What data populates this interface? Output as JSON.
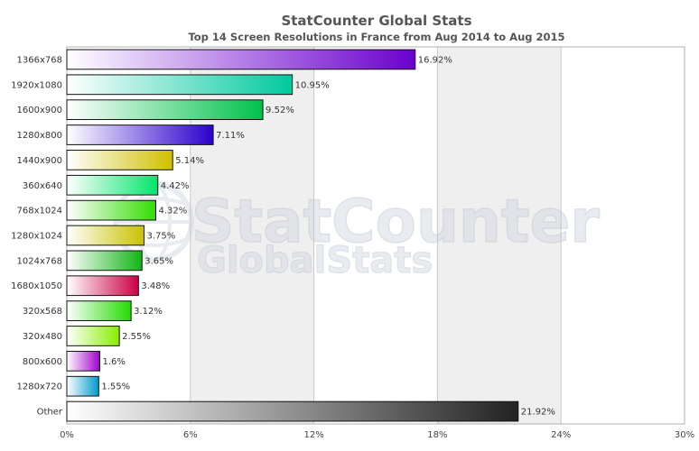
{
  "chart_data": {
    "type": "bar",
    "orientation": "horizontal",
    "title": "StatCounter Global Stats",
    "subtitle": "Top 14 Screen Resolutions in France from Aug 2014 to Aug 2015",
    "categories": [
      "1366x768",
      "1920x1080",
      "1600x900",
      "1280x800",
      "1440x900",
      "360x640",
      "768x1024",
      "1280x1024",
      "1024x768",
      "1680x1050",
      "320x568",
      "320x480",
      "800x600",
      "1280x720",
      "Other"
    ],
    "values": [
      16.92,
      10.95,
      9.52,
      7.11,
      5.14,
      4.42,
      4.32,
      3.75,
      3.65,
      3.48,
      3.12,
      2.55,
      1.6,
      1.55,
      21.92
    ],
    "value_labels": [
      "16.92%",
      "10.95%",
      "9.52%",
      "7.11%",
      "5.14%",
      "4.42%",
      "4.32%",
      "3.75%",
      "3.65%",
      "3.48%",
      "3.12%",
      "2.55%",
      "1.6%",
      "1.55%",
      "21.92%"
    ],
    "colors": [
      "#6a00cc",
      "#00c99e",
      "#00c14a",
      "#2b00cc",
      "#cfc000",
      "#00e66b",
      "#33dd00",
      "#c9c200",
      "#11b515",
      "#cc0044",
      "#22dd00",
      "#88ee00",
      "#a200cc",
      "#0099cc",
      "#222222"
    ],
    "xlim": [
      0,
      30
    ],
    "xticks": [
      "0%",
      "6%",
      "12%",
      "18%",
      "24%",
      "30%"
    ],
    "grid": true,
    "band_color": "#efefef",
    "legend": "none"
  },
  "watermark": {
    "line1": "StatCounter",
    "line2": "GlobalStats"
  }
}
